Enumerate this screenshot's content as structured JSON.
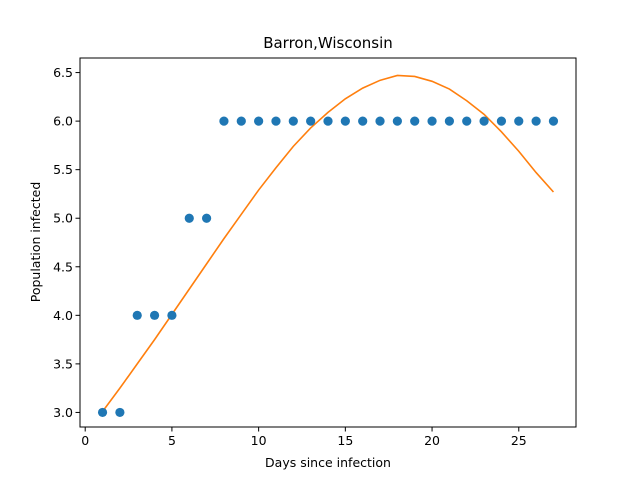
{
  "chart_data": {
    "type": "scatter",
    "title": "Barron,Wisconsin",
    "xlabel": "Days since infection",
    "ylabel": "Population infected",
    "xlim": [
      -0.3,
      28.3
    ],
    "ylim": [
      2.85,
      6.65
    ],
    "xticks": [
      0,
      5,
      10,
      15,
      20,
      25
    ],
    "xtick_labels": [
      "0",
      "5",
      "10",
      "15",
      "20",
      "25"
    ],
    "yticks": [
      3.0,
      3.5,
      4.0,
      4.5,
      5.0,
      5.5,
      6.0,
      6.5
    ],
    "ytick_labels": [
      "3.0",
      "3.5",
      "4.0",
      "4.5",
      "5.0",
      "5.5",
      "6.0",
      "6.5"
    ],
    "grid": false,
    "series": [
      {
        "kind": "scatter",
        "color": "#1f77b4",
        "x": [
          1,
          2,
          3,
          4,
          5,
          6,
          7,
          8,
          9,
          10,
          11,
          12,
          13,
          14,
          15,
          16,
          17,
          18,
          19,
          20,
          21,
          22,
          23,
          24,
          25,
          26,
          27
        ],
        "y": [
          3,
          3,
          4,
          4,
          4,
          5,
          5,
          6,
          6,
          6,
          6,
          6,
          6,
          6,
          6,
          6,
          6,
          6,
          6,
          6,
          6,
          6,
          6,
          6,
          6,
          6,
          6
        ]
      },
      {
        "kind": "line",
        "color": "#ff7f0e",
        "x": [
          1,
          2,
          3,
          4,
          5,
          6,
          7,
          8,
          9,
          10,
          11,
          12,
          13,
          14,
          15,
          16,
          17,
          18,
          19,
          20,
          21,
          22,
          23,
          24,
          25,
          26,
          27
        ],
        "y": [
          3.01,
          3.25,
          3.5,
          3.75,
          4.01,
          4.27,
          4.53,
          4.79,
          5.04,
          5.29,
          5.52,
          5.74,
          5.93,
          6.09,
          6.23,
          6.34,
          6.42,
          6.47,
          6.46,
          6.41,
          6.33,
          6.21,
          6.07,
          5.89,
          5.69,
          5.47,
          5.27
        ]
      }
    ]
  }
}
